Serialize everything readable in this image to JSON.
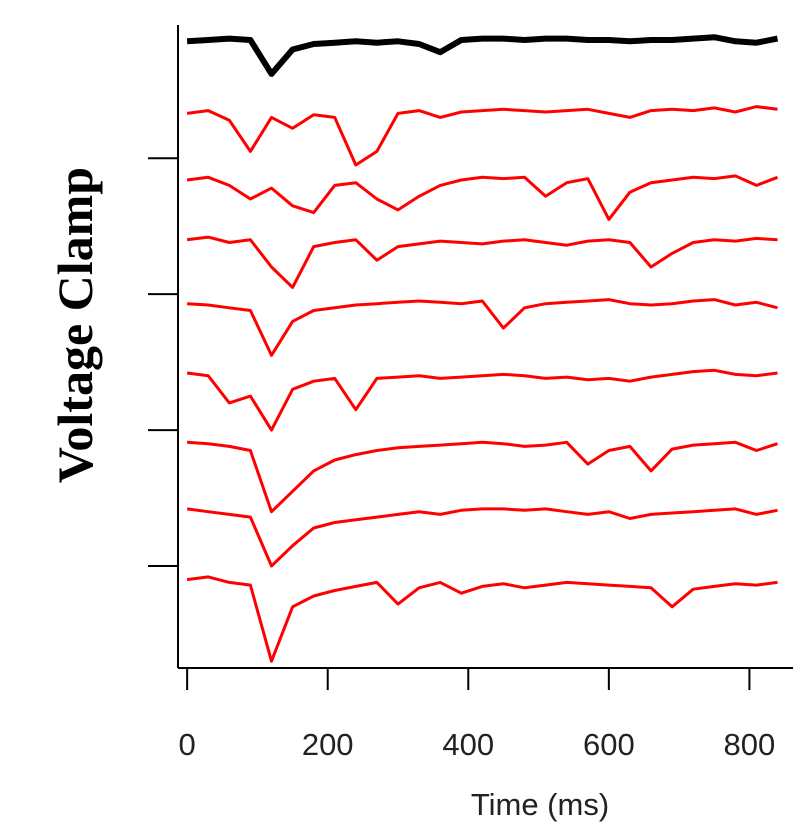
{
  "chart_data": {
    "type": "line",
    "y_label": "Voltage Clamp",
    "x_label": "Time (ms)",
    "x": [
      0,
      30,
      60,
      90,
      120,
      150,
      180,
      210,
      240,
      270,
      300,
      330,
      360,
      390,
      420,
      450,
      480,
      510,
      540,
      570,
      600,
      630,
      660,
      690,
      720,
      750,
      780,
      810,
      840
    ],
    "series": [
      {
        "color": "#000000",
        "values": [
          4.86,
          4.87,
          4.88,
          4.87,
          4.62,
          4.8,
          4.84,
          4.85,
          4.86,
          4.85,
          4.86,
          4.84,
          4.78,
          4.87,
          4.88,
          4.88,
          4.87,
          4.88,
          4.88,
          4.87,
          4.87,
          4.86,
          4.87,
          4.87,
          4.88,
          4.89,
          4.86,
          4.85,
          4.88
        ]
      },
      {
        "color": "#ff0000",
        "values": [
          4.33,
          4.35,
          4.28,
          4.05,
          4.3,
          4.22,
          4.32,
          4.3,
          3.95,
          4.05,
          4.33,
          4.35,
          4.3,
          4.34,
          4.35,
          4.36,
          4.35,
          4.34,
          4.35,
          4.36,
          4.33,
          4.3,
          4.35,
          4.36,
          4.35,
          4.37,
          4.34,
          4.38,
          4.36
        ]
      },
      {
        "color": "#ff0000",
        "values": [
          3.84,
          3.86,
          3.8,
          3.7,
          3.78,
          3.65,
          3.6,
          3.8,
          3.82,
          3.7,
          3.62,
          3.72,
          3.8,
          3.84,
          3.86,
          3.85,
          3.86,
          3.72,
          3.82,
          3.85,
          3.55,
          3.75,
          3.82,
          3.84,
          3.86,
          3.85,
          3.87,
          3.8,
          3.86
        ]
      },
      {
        "color": "#ff0000",
        "values": [
          3.4,
          3.42,
          3.38,
          3.4,
          3.2,
          3.05,
          3.35,
          3.38,
          3.4,
          3.25,
          3.35,
          3.37,
          3.39,
          3.38,
          3.37,
          3.39,
          3.4,
          3.38,
          3.36,
          3.39,
          3.4,
          3.38,
          3.2,
          3.3,
          3.38,
          3.4,
          3.39,
          3.41,
          3.4
        ]
      },
      {
        "color": "#ff0000",
        "values": [
          2.93,
          2.92,
          2.9,
          2.88,
          2.55,
          2.8,
          2.88,
          2.9,
          2.92,
          2.93,
          2.94,
          2.95,
          2.94,
          2.93,
          2.95,
          2.75,
          2.9,
          2.93,
          2.94,
          2.95,
          2.96,
          2.93,
          2.92,
          2.93,
          2.95,
          2.96,
          2.92,
          2.94,
          2.9
        ]
      },
      {
        "color": "#ff0000",
        "values": [
          2.42,
          2.4,
          2.2,
          2.25,
          2.0,
          2.3,
          2.36,
          2.38,
          2.15,
          2.38,
          2.39,
          2.4,
          2.38,
          2.39,
          2.4,
          2.41,
          2.4,
          2.38,
          2.39,
          2.37,
          2.38,
          2.36,
          2.39,
          2.41,
          2.43,
          2.44,
          2.41,
          2.4,
          2.42
        ]
      },
      {
        "color": "#ff0000",
        "values": [
          1.91,
          1.9,
          1.88,
          1.85,
          1.4,
          1.55,
          1.7,
          1.78,
          1.82,
          1.85,
          1.87,
          1.88,
          1.89,
          1.9,
          1.91,
          1.9,
          1.88,
          1.89,
          1.91,
          1.75,
          1.85,
          1.88,
          1.7,
          1.86,
          1.89,
          1.9,
          1.91,
          1.85,
          1.9
        ]
      },
      {
        "color": "#ff0000",
        "values": [
          1.42,
          1.4,
          1.38,
          1.36,
          1.0,
          1.15,
          1.28,
          1.32,
          1.34,
          1.36,
          1.38,
          1.4,
          1.38,
          1.41,
          1.42,
          1.42,
          1.41,
          1.42,
          1.4,
          1.38,
          1.4,
          1.35,
          1.38,
          1.39,
          1.4,
          1.41,
          1.42,
          1.38,
          1.41
        ]
      },
      {
        "color": "#ff0000",
        "values": [
          0.9,
          0.92,
          0.88,
          0.86,
          0.3,
          0.7,
          0.78,
          0.82,
          0.85,
          0.88,
          0.72,
          0.84,
          0.88,
          0.8,
          0.85,
          0.87,
          0.84,
          0.86,
          0.88,
          0.87,
          0.86,
          0.85,
          0.84,
          0.7,
          0.83,
          0.85,
          0.87,
          0.86,
          0.88
        ]
      }
    ],
    "xlim": [
      -13,
      862
    ],
    "xticks": [
      0,
      200,
      400,
      600,
      800
    ],
    "ylim": [
      0.25,
      4.98
    ],
    "yticks": [
      1,
      2,
      3,
      4
    ]
  }
}
